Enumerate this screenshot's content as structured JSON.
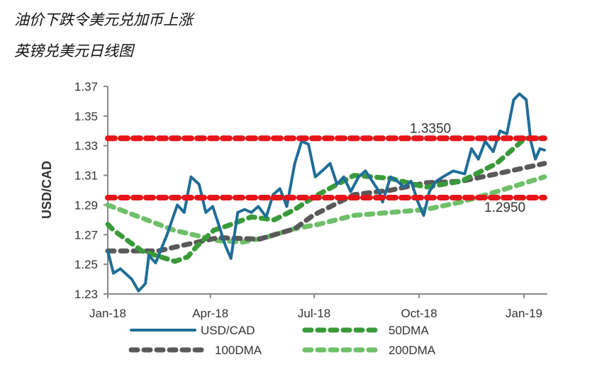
{
  "titles": [
    "油价下跌令美元兑加币上涨",
    "英镑兑美元日线图"
  ],
  "chart_data": {
    "type": "line",
    "ylabel": "USD/CAD",
    "xlabel": "",
    "ylim": [
      1.23,
      1.37
    ],
    "yticks": [
      "1.23",
      "1.25",
      "1.27",
      "1.29",
      "1.31",
      "1.33",
      "1.35",
      "1.37"
    ],
    "xticks": [
      {
        "label": "Jan-18",
        "date": "2018-01-01"
      },
      {
        "label": "Apr-18",
        "date": "2018-04-01"
      },
      {
        "label": "Jul-18",
        "date": "2018-07-01"
      },
      {
        "label": "Oct-18",
        "date": "2018-10-01"
      },
      {
        "label": "Jan-19",
        "date": "2019-01-01"
      }
    ],
    "xlim": [
      "2018-01-01",
      "2019-01-19"
    ],
    "grid": false,
    "legend_placement": "bottom",
    "reference_lines": [
      {
        "value": 1.335,
        "label": "1.3350",
        "color": "#e8141a"
      },
      {
        "value": 1.295,
        "label": "1.2950",
        "color": "#e8141a"
      }
    ],
    "series": [
      {
        "name": "USD/CAD",
        "color": "#1f6d96",
        "style": "solid",
        "points": [
          [
            "2018-01-01",
            1.259
          ],
          [
            "2018-01-06",
            1.244
          ],
          [
            "2018-01-12",
            1.247
          ],
          [
            "2018-01-22",
            1.24
          ],
          [
            "2018-01-28",
            1.232
          ],
          [
            "2018-02-03",
            1.237
          ],
          [
            "2018-02-06",
            1.256
          ],
          [
            "2018-02-12",
            1.251
          ],
          [
            "2018-02-22",
            1.27
          ],
          [
            "2018-03-03",
            1.29
          ],
          [
            "2018-03-09",
            1.285
          ],
          [
            "2018-03-15",
            1.309
          ],
          [
            "2018-03-22",
            1.304
          ],
          [
            "2018-03-28",
            1.285
          ],
          [
            "2018-04-03",
            1.289
          ],
          [
            "2018-04-09",
            1.275
          ],
          [
            "2018-04-14",
            1.263
          ],
          [
            "2018-04-19",
            1.254
          ],
          [
            "2018-04-25",
            1.285
          ],
          [
            "2018-05-01",
            1.287
          ],
          [
            "2018-05-07",
            1.285
          ],
          [
            "2018-05-13",
            1.289
          ],
          [
            "2018-05-20",
            1.282
          ],
          [
            "2018-05-26",
            1.297
          ],
          [
            "2018-06-01",
            1.301
          ],
          [
            "2018-06-07",
            1.289
          ],
          [
            "2018-06-14",
            1.318
          ],
          [
            "2018-06-20",
            1.333
          ],
          [
            "2018-06-26",
            1.331
          ],
          [
            "2018-07-02",
            1.309
          ],
          [
            "2018-07-08",
            1.313
          ],
          [
            "2018-07-15",
            1.318
          ],
          [
            "2018-07-21",
            1.304
          ],
          [
            "2018-07-27",
            1.309
          ],
          [
            "2018-08-02",
            1.299
          ],
          [
            "2018-08-09",
            1.309
          ],
          [
            "2018-08-15",
            1.313
          ],
          [
            "2018-08-21",
            1.306
          ],
          [
            "2018-08-27",
            1.299
          ],
          [
            "2018-08-30",
            1.292
          ],
          [
            "2018-09-06",
            1.309
          ],
          [
            "2018-09-12",
            1.306
          ],
          [
            "2018-09-18",
            1.302
          ],
          [
            "2018-09-24",
            1.306
          ],
          [
            "2018-09-30",
            1.292
          ],
          [
            "2018-10-05",
            1.283
          ],
          [
            "2018-10-10",
            1.299
          ],
          [
            "2018-10-16",
            1.306
          ],
          [
            "2018-10-22",
            1.309
          ],
          [
            "2018-10-31",
            1.313
          ],
          [
            "2018-11-10",
            1.311
          ],
          [
            "2018-11-16",
            1.328
          ],
          [
            "2018-11-22",
            1.321
          ],
          [
            "2018-11-28",
            1.333
          ],
          [
            "2018-12-05",
            1.326
          ],
          [
            "2018-12-11",
            1.34
          ],
          [
            "2018-12-17",
            1.338
          ],
          [
            "2018-12-23",
            1.361
          ],
          [
            "2018-12-28",
            1.365
          ],
          [
            "2019-01-03",
            1.361
          ],
          [
            "2019-01-07",
            1.333
          ],
          [
            "2019-01-11",
            1.321
          ],
          [
            "2019-01-15",
            1.328
          ],
          [
            "2019-01-19",
            1.327
          ]
        ]
      },
      {
        "name": "50DMA",
        "color": "#3a9a3a",
        "style": "dashed",
        "points": [
          [
            "2018-01-01",
            1.277
          ],
          [
            "2018-01-06",
            1.273
          ],
          [
            "2018-01-31",
            1.259
          ],
          [
            "2018-03-01",
            1.252
          ],
          [
            "2018-03-12",
            1.255
          ],
          [
            "2018-03-20",
            1.262
          ],
          [
            "2018-04-04",
            1.273
          ],
          [
            "2018-04-16",
            1.276
          ],
          [
            "2018-05-07",
            1.282
          ],
          [
            "2018-05-27",
            1.28
          ],
          [
            "2018-06-14",
            1.287
          ],
          [
            "2018-07-02",
            1.296
          ],
          [
            "2018-08-05",
            1.31
          ],
          [
            "2018-09-06",
            1.308
          ],
          [
            "2018-10-07",
            1.302
          ],
          [
            "2018-11-07",
            1.306
          ],
          [
            "2018-12-08",
            1.318
          ],
          [
            "2019-01-02",
            1.335
          ],
          [
            "2019-01-19",
            1.335
          ]
        ]
      },
      {
        "name": "100DMA",
        "color": "#595959",
        "style": "dashed",
        "points": [
          [
            "2018-01-01",
            1.259
          ],
          [
            "2018-02-14",
            1.259
          ],
          [
            "2018-03-15",
            1.264
          ],
          [
            "2018-04-08",
            1.268
          ],
          [
            "2018-05-14",
            1.267
          ],
          [
            "2018-06-14",
            1.274
          ],
          [
            "2018-06-30",
            1.283
          ],
          [
            "2018-08-05",
            1.297
          ],
          [
            "2018-09-06",
            1.3
          ],
          [
            "2018-10-07",
            1.305
          ],
          [
            "2018-11-07",
            1.306
          ],
          [
            "2018-12-08",
            1.311
          ],
          [
            "2019-01-19",
            1.318
          ]
        ]
      },
      {
        "name": "200DMA",
        "color": "#6fbf6a",
        "style": "dashed",
        "points": [
          [
            "2018-01-01",
            1.29
          ],
          [
            "2018-02-28",
            1.273
          ],
          [
            "2018-04-08",
            1.266
          ],
          [
            "2018-04-29",
            1.265
          ],
          [
            "2018-05-19",
            1.268
          ],
          [
            "2018-06-14",
            1.274
          ],
          [
            "2018-07-05",
            1.277
          ],
          [
            "2018-08-05",
            1.283
          ],
          [
            "2018-09-06",
            1.285
          ],
          [
            "2018-10-07",
            1.287
          ],
          [
            "2018-11-07",
            1.292
          ],
          [
            "2018-12-08",
            1.299
          ],
          [
            "2019-01-19",
            1.309
          ]
        ]
      }
    ]
  }
}
